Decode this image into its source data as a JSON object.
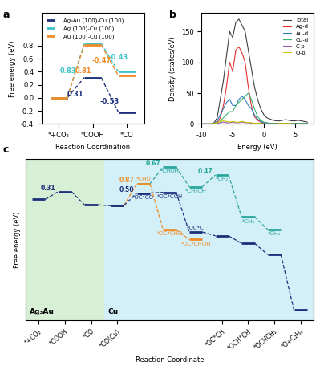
{
  "chart_data": [
    {
      "panel": "a",
      "type": "line",
      "x_label": "Reaction Coordination",
      "y_label": "Free energy (eV)",
      "categories": [
        "*+CO₂",
        "*COOH",
        "*CO"
      ],
      "ylim": [
        -0.4,
        1.3
      ],
      "yticks": [
        -0.4,
        -0.2,
        0.0,
        0.2,
        0.4,
        0.6,
        0.8
      ],
      "legend": "upper left",
      "line_style": "dashed",
      "series": [
        {
          "name": "Ag₃Au (100)-Cu (100)",
          "color": "#1b2f7a",
          "values": [
            0,
            0.31,
            -0.22
          ],
          "step_labels": [
            null,
            "0.31",
            "-0.53"
          ]
        },
        {
          "name": "Ag (100)-Cu (100)",
          "color": "#3cc3c9",
          "values": [
            0,
            0.83,
            0.4
          ],
          "step_labels": [
            null,
            "0.83",
            "-0.43"
          ]
        },
        {
          "name": "Au (100)-Cu (100)",
          "color": "#f08c28",
          "values": [
            0,
            0.81,
            0.34
          ],
          "step_labels": [
            null,
            "0.81",
            "-0.47"
          ]
        }
      ]
    },
    {
      "panel": "b",
      "type": "line",
      "x_label": "Energy (eV)",
      "y_label": "Density (states/eV)",
      "x": [
        -10,
        -9.5,
        -9,
        -8.5,
        -8,
        -7.5,
        -7,
        -6.5,
        -6,
        -5.5,
        -5,
        -4.5,
        -4,
        -3.5,
        -3,
        -2.5,
        -2,
        -1.5,
        -1,
        -0.5,
        0,
        0.5,
        1,
        1.5,
        2,
        2.5,
        3,
        3.5,
        4,
        4.5,
        5,
        5.5,
        6,
        6.5,
        7
      ],
      "xlim": [
        -10,
        8
      ],
      "xticks": [
        -10,
        -5,
        0,
        5
      ],
      "ylim": [
        0,
        180
      ],
      "yticks": [
        0,
        50,
        100,
        150
      ],
      "legend": "upper right",
      "series": [
        {
          "name": "Total",
          "color": "#404040",
          "values": [
            0,
            0,
            0,
            0,
            2,
            10,
            40,
            70,
            110,
            150,
            140,
            165,
            170,
            160,
            150,
            120,
            90,
            60,
            40,
            25,
            15,
            10,
            8,
            6,
            5,
            5,
            6,
            7,
            6,
            5,
            5,
            6,
            5,
            4,
            3
          ]
        },
        {
          "name": "Ag-d",
          "color": "#e03030",
          "values": [
            0,
            0,
            0,
            0,
            0,
            2,
            10,
            30,
            60,
            100,
            85,
            120,
            125,
            115,
            100,
            60,
            30,
            12,
            6,
            3,
            2,
            1,
            1,
            1,
            1,
            1,
            1,
            1,
            1,
            1,
            1,
            1,
            1,
            1,
            1
          ]
        },
        {
          "name": "Au-d",
          "color": "#2f7fc1",
          "values": [
            0,
            0,
            0,
            0,
            1,
            5,
            15,
            25,
            35,
            40,
            30,
            30,
            40,
            45,
            40,
            30,
            25,
            15,
            8,
            4,
            2,
            1,
            1,
            1,
            1,
            1,
            1,
            1,
            1,
            1,
            1,
            1,
            1,
            1,
            1
          ]
        },
        {
          "name": "Cu-d",
          "color": "#3cb371",
          "values": [
            0,
            0,
            0,
            0,
            0,
            1,
            5,
            10,
            15,
            20,
            20,
            30,
            35,
            40,
            45,
            50,
            40,
            25,
            12,
            6,
            3,
            2,
            1,
            1,
            1,
            1,
            1,
            1,
            1,
            1,
            1,
            1,
            1,
            1,
            1
          ]
        },
        {
          "name": "C-p",
          "color": "#9b59b6",
          "values": [
            0,
            0,
            0,
            0,
            0,
            1,
            2,
            3,
            2,
            2,
            3,
            2,
            2,
            3,
            2,
            2,
            1,
            1,
            1,
            1,
            1,
            0,
            0,
            0,
            0,
            1,
            1,
            1,
            0,
            0,
            0,
            0,
            0,
            0,
            0
          ]
        },
        {
          "name": "O-p",
          "color": "#c8c800",
          "values": [
            0,
            0,
            0,
            0,
            1,
            2,
            4,
            5,
            4,
            3,
            4,
            3,
            3,
            4,
            3,
            2,
            2,
            1,
            1,
            1,
            0,
            0,
            0,
            0,
            0,
            1,
            1,
            1,
            1,
            0,
            0,
            0,
            0,
            0,
            0
          ]
        }
      ]
    },
    {
      "panel": "c",
      "type": "line",
      "x_label": "Reaction Coordinate",
      "y_label": "Free energy (eV)",
      "categories": [
        "*+CO₂",
        "*COOH",
        "*CO",
        "*CO(Cu)",
        null,
        null,
        null,
        "*OC*CH",
        "*OCH*CH",
        "*OCHCH₂",
        "*O+C₂H₄"
      ],
      "ylim": [
        -4.8,
        1.6
      ],
      "tick_labels": "x",
      "line_style": "dashed",
      "regions": [
        {
          "label": "Ag₃Au",
          "color": "#cdeccb",
          "from": "*+CO₂",
          "to": "*CO"
        },
        {
          "label": "Cu",
          "color": "#c9ecf7",
          "from": "*CO(Cu)",
          "to": "*O+C₂H₄"
        }
      ],
      "series": [
        {
          "color": "#1b2f7a",
          "values": [
            0,
            0.31,
            -0.22,
            -0.25,
            0.25,
            0.28,
            -1.3,
            -1.45,
            -1.75,
            -2.2,
            -4.4
          ],
          "level_labels": [
            null,
            null,
            null,
            null,
            "*OC*CO",
            "*OC*COH",
            "*OC*C",
            null,
            null,
            null,
            null
          ],
          "step_labels": [
            null,
            "0.31",
            null,
            null,
            "0.50",
            null,
            null,
            null,
            null,
            null,
            null
          ]
        },
        {
          "color": "#f08c28",
          "values": [
            null,
            null,
            null,
            -0.25,
            0.62,
            -1.2,
            -1.6,
            null,
            null,
            null,
            null
          ],
          "level_labels": [
            null,
            null,
            null,
            null,
            "*CHO",
            "*OC*CHO",
            "*OC*CHOH",
            null,
            null,
            null,
            null
          ],
          "step_labels": [
            null,
            null,
            null,
            null,
            "0.87",
            null,
            null,
            null,
            null,
            null,
            null
          ]
        },
        {
          "color": "#2aa79b",
          "values": [
            null,
            null,
            null,
            null,
            0.62,
            1.29,
            0.5,
            0.97,
            -0.7,
            -1.2,
            null
          ],
          "level_labels": [
            null,
            null,
            null,
            null,
            null,
            "*CHOH",
            "*CH₂OH",
            "*CH₂",
            "*CH₃",
            "*CH₄",
            null
          ],
          "step_labels": [
            null,
            null,
            null,
            null,
            null,
            "0.67",
            null,
            "0.47",
            null,
            null,
            null
          ]
        }
      ]
    }
  ]
}
